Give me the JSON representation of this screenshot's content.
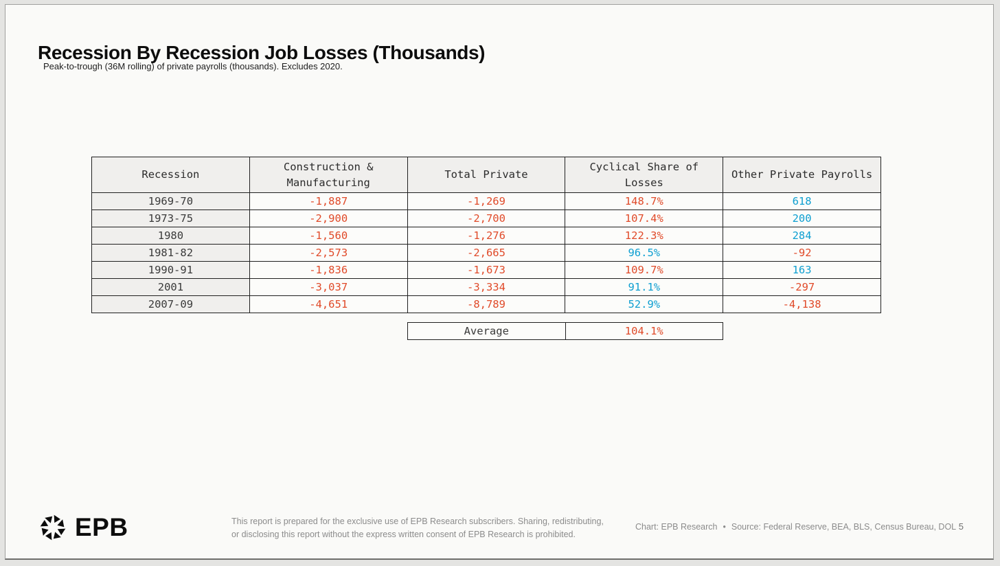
{
  "colors": {
    "negative_red": "#e04a29",
    "positive_blue": "#0e9fd1",
    "header_bg": "#f0efed",
    "card_bg": "#fafaf8",
    "page_bg": "#e4e4e2",
    "table_border": "#1f1f1f"
  },
  "header": {
    "title": "Recession By Recession Job Losses (Thousands)",
    "subtitle": "Peak-to-trough (36M rolling) of private payrolls (thousands). Excludes 2020."
  },
  "table": {
    "columns": [
      "Recession",
      "Construction & Manufacturing",
      "Total Private",
      "Cyclical Share of Losses",
      "Other Private Payrolls"
    ],
    "rows": [
      {
        "cells": [
          {
            "text": "1969-70",
            "tone": "dark"
          },
          {
            "text": "-1,887",
            "tone": "red"
          },
          {
            "text": "-1,269",
            "tone": "red"
          },
          {
            "text": "148.7%",
            "tone": "red"
          },
          {
            "text": "618",
            "tone": "blue"
          }
        ]
      },
      {
        "cells": [
          {
            "text": "1973-75",
            "tone": "dark"
          },
          {
            "text": "-2,900",
            "tone": "red"
          },
          {
            "text": "-2,700",
            "tone": "red"
          },
          {
            "text": "107.4%",
            "tone": "red"
          },
          {
            "text": "200",
            "tone": "blue"
          }
        ]
      },
      {
        "cells": [
          {
            "text": "1980",
            "tone": "dark"
          },
          {
            "text": "-1,560",
            "tone": "red"
          },
          {
            "text": "-1,276",
            "tone": "red"
          },
          {
            "text": "122.3%",
            "tone": "red"
          },
          {
            "text": "284",
            "tone": "blue"
          }
        ]
      },
      {
        "cells": [
          {
            "text": "1981-82",
            "tone": "dark"
          },
          {
            "text": "-2,573",
            "tone": "red"
          },
          {
            "text": "-2,665",
            "tone": "red"
          },
          {
            "text": "96.5%",
            "tone": "blue"
          },
          {
            "text": "-92",
            "tone": "red"
          }
        ]
      },
      {
        "cells": [
          {
            "text": "1990-91",
            "tone": "dark"
          },
          {
            "text": "-1,836",
            "tone": "red"
          },
          {
            "text": "-1,673",
            "tone": "red"
          },
          {
            "text": "109.7%",
            "tone": "red"
          },
          {
            "text": "163",
            "tone": "blue"
          }
        ]
      },
      {
        "cells": [
          {
            "text": "2001",
            "tone": "dark"
          },
          {
            "text": "-3,037",
            "tone": "red"
          },
          {
            "text": "-3,334",
            "tone": "red"
          },
          {
            "text": "91.1%",
            "tone": "blue"
          },
          {
            "text": "-297",
            "tone": "red"
          }
        ]
      },
      {
        "cells": [
          {
            "text": "2007-09",
            "tone": "dark"
          },
          {
            "text": "-4,651",
            "tone": "red"
          },
          {
            "text": "-8,789",
            "tone": "red"
          },
          {
            "text": "52.9%",
            "tone": "blue"
          },
          {
            "text": "-4,138",
            "tone": "red"
          }
        ]
      }
    ]
  },
  "average": {
    "label": "Average",
    "value": "104.1%"
  },
  "footer": {
    "logo_text": "EPB",
    "disclaimer_line1": "This report is prepared for the exclusive use of EPB Research subscribers. Sharing, redistributing,",
    "disclaimer_line2": "or disclosing this report without the express written consent of EPB Research is prohibited.",
    "credit_chart": "Chart: EPB Research",
    "credit_separator": "•",
    "credit_source": "Source: Federal Reserve, BEA, BLS, Census Bureau, DOL",
    "page_number": "5"
  },
  "chart_data": {
    "type": "table",
    "title": "Recession By Recession Job Losses (Thousands)",
    "subtitle": "Peak-to-trough (36M rolling) of private payrolls (thousands). Excludes 2020.",
    "columns": [
      "Recession",
      "Construction & Manufacturing",
      "Total Private",
      "Cyclical Share of Losses",
      "Other Private Payrolls"
    ],
    "rows": [
      [
        "1969-70",
        -1887,
        -1269,
        "148.7%",
        618
      ],
      [
        "1973-75",
        -2900,
        -2700,
        "107.4%",
        200
      ],
      [
        "1980",
        -1560,
        -1276,
        "122.3%",
        284
      ],
      [
        "1981-82",
        -2573,
        -2665,
        "96.5%",
        -92
      ],
      [
        "1990-91",
        -1836,
        -1673,
        "109.7%",
        163
      ],
      [
        "2001",
        -3037,
        -3334,
        "91.1%",
        -297
      ],
      [
        "2007-09",
        -4651,
        -8789,
        "52.9%",
        -4138
      ]
    ],
    "average_cyclical_share_of_losses": "104.1%",
    "color_rule": "negative values and shares >= 100% shown red (#e04a29); positive values and shares < 100% shown blue (#0e9fd1)"
  }
}
